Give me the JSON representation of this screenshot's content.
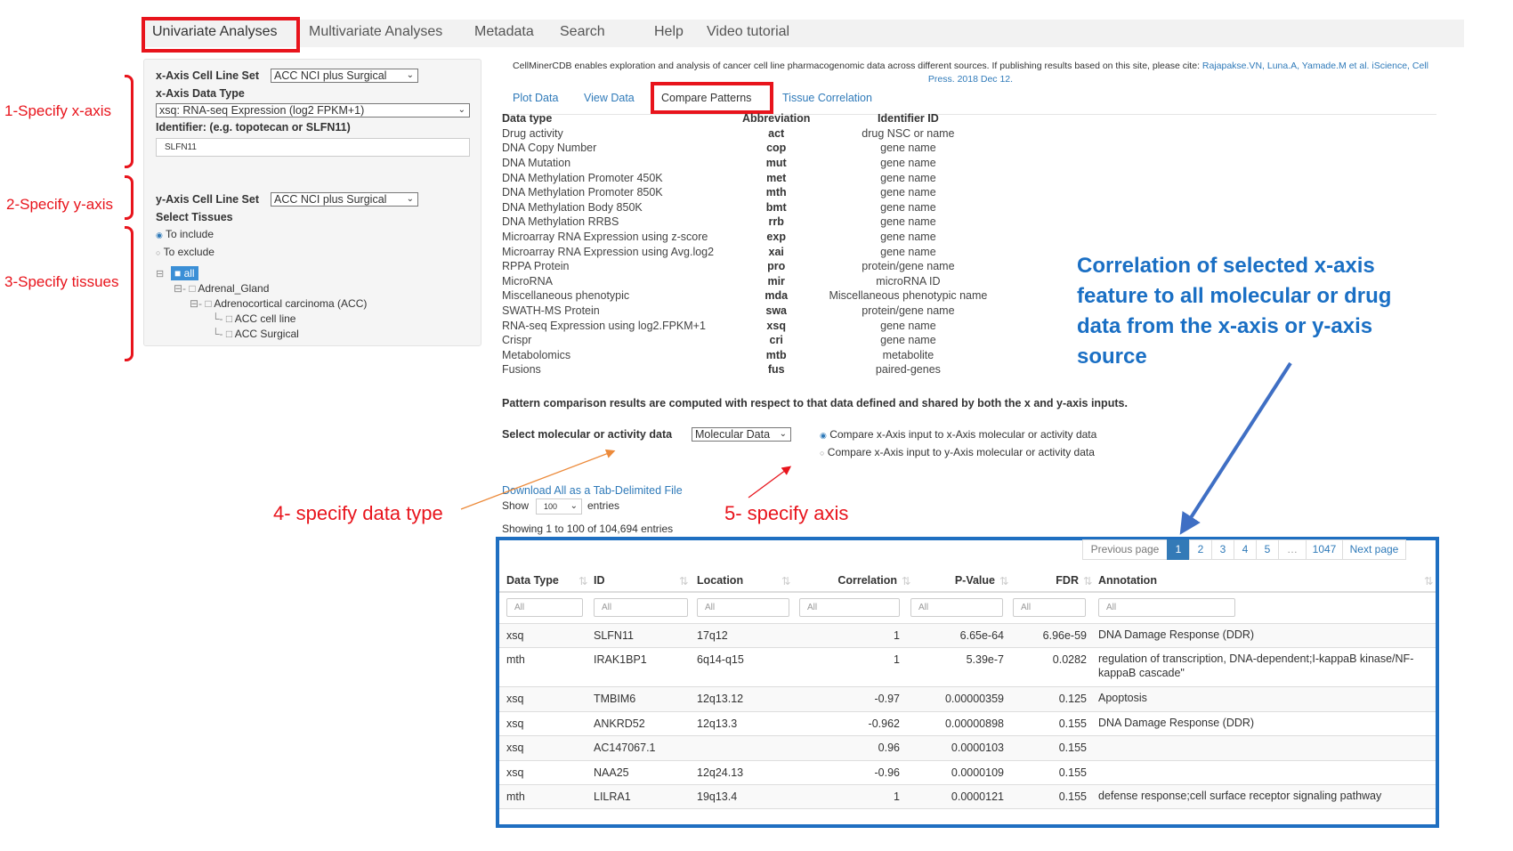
{
  "nav": {
    "items": [
      "Univariate Analyses",
      "Multivariate Analyses",
      "Metadata",
      "Search",
      "Help",
      "Video tutorial"
    ],
    "active": "Univariate Analyses"
  },
  "left": {
    "x_cellset_label": "x-Axis Cell Line Set",
    "x_cellset_value": "ACC NCI plus Surgical",
    "x_datatype_label": "x-Axis Data Type",
    "x_datatype_value": "xsq: RNA-seq Expression (log2 FPKM+1)",
    "identifier_label": "Identifier: (e.g. topotecan or SLFN11)",
    "identifier_value": "SLFN11",
    "y_cellset_label": "y-Axis Cell Line Set",
    "y_cellset_value": "ACC NCI plus Surgical",
    "select_tissues_label": "Select Tissues",
    "include_label": "To include",
    "exclude_label": "To exclude",
    "tree": {
      "all": "all",
      "adrenal": "Adrenal_Gland",
      "acc": "Adrenocortical carcinoma (ACC)",
      "cellline": "ACC cell line",
      "surgical": "ACC Surgical"
    }
  },
  "annotations": {
    "x": "1-Specify x-axis",
    "y": "2-Specify y-axis",
    "tissues": "3-Specify tissues",
    "datatype": "4- specify data type",
    "axis": "5- specify axis",
    "correlation": [
      "Correlation of selected x-axis",
      "feature to all molecular or drug",
      "data from the x-axis or y-axis",
      "source"
    ]
  },
  "citation": {
    "text": "CellMinerCDB enables exploration and analysis of cancer cell line pharmacogenomic data across different sources. If publishing results based on this site, please cite: ",
    "link": "Rajapakse.VN, Luna.A, Yamade.M et al. iScience, Cell Press. 2018 Dec 12."
  },
  "tabs": [
    "Plot Data",
    "View Data",
    "Compare Patterns",
    "Tissue Correlation"
  ],
  "datatypes": {
    "headers": [
      "Data type",
      "Abbreviation",
      "Identifier ID"
    ],
    "rows": [
      [
        "Drug activity",
        "act",
        "drug NSC or name"
      ],
      [
        "DNA Copy Number",
        "cop",
        "gene name"
      ],
      [
        "DNA Mutation",
        "mut",
        "gene name"
      ],
      [
        "DNA Methylation Promoter 450K",
        "met",
        "gene name"
      ],
      [
        "DNA Methylation Promoter 850K",
        "mth",
        "gene name"
      ],
      [
        "DNA Methylation Body 850K",
        "bmt",
        "gene name"
      ],
      [
        "DNA Methylation RRBS",
        "rrb",
        "gene name"
      ],
      [
        "Microarray RNA Expression using z-score",
        "exp",
        "gene name"
      ],
      [
        "Microarray RNA Expression using Avg.log2",
        "xai",
        "gene name"
      ],
      [
        "RPPA Protein",
        "pro",
        "protein/gene name"
      ],
      [
        "MicroRNA",
        "mir",
        "microRNA ID"
      ],
      [
        "Miscellaneous phenotypic",
        "mda",
        "Miscellaneous phenotypic name"
      ],
      [
        "SWATH-MS Protein",
        "swa",
        "protein/gene name"
      ],
      [
        "RNA-seq Expression using log2.FPKM+1",
        "xsq",
        "gene name"
      ],
      [
        "Crispr",
        "cri",
        "gene name"
      ],
      [
        "Metabolomics",
        "mtb",
        "metabolite"
      ],
      [
        "Fusions",
        "fus",
        "paired-genes"
      ]
    ]
  },
  "pattern_note": "Pattern comparison results are computed with respect to that data defined and shared by both the x and y-axis inputs.",
  "select_data": {
    "label": "Select molecular or activity data",
    "value": "Molecular Data",
    "radio1": "Compare x-Axis input to x-Axis molecular or activity data",
    "radio2": "Compare x-Axis input to y-Axis molecular or activity data"
  },
  "download": "Download All as a Tab-Delimited File",
  "show": {
    "label": "Show",
    "value": "100",
    "suffix": "entries"
  },
  "showing": "Showing 1 to 100 of 104,694 entries",
  "pagination": [
    "Previous page",
    "1",
    "2",
    "3",
    "4",
    "5",
    "…",
    "1047",
    "Next page"
  ],
  "results": {
    "headers": [
      "Data Type",
      "ID",
      "Location",
      "Correlation",
      "P-Value",
      "FDR",
      "Annotation"
    ],
    "filter_placeholder": "All",
    "rows": [
      [
        "xsq",
        "SLFN11",
        "17q12",
        "1",
        "6.65e-64",
        "6.96e-59",
        "DNA Damage Response (DDR)"
      ],
      [
        "mth",
        "IRAK1BP1",
        "6q14-q15",
        "1",
        "5.39e-7",
        "0.0282",
        "regulation of transcription, DNA-dependent;I-kappaB kinase/NF-kappaB cascade\""
      ],
      [
        "xsq",
        "TMBIM6",
        "12q13.12",
        "-0.97",
        "0.00000359",
        "0.125",
        "Apoptosis"
      ],
      [
        "xsq",
        "ANKRD52",
        "12q13.3",
        "-0.962",
        "0.00000898",
        "0.155",
        "DNA Damage Response (DDR)"
      ],
      [
        "xsq",
        "AC147067.1",
        "",
        "0.96",
        "0.0000103",
        "0.155",
        ""
      ],
      [
        "xsq",
        "NAA25",
        "12q24.13",
        "-0.96",
        "0.0000109",
        "0.155",
        ""
      ],
      [
        "mth",
        "LILRA1",
        "19q13.4",
        "1",
        "0.0000121",
        "0.155",
        "defense response;cell surface receptor signaling pathway"
      ]
    ]
  },
  "colors": {
    "highlight_red": "#e8141c",
    "box_blue": "#1f6fc1",
    "link_blue": "#2f7ab9",
    "callout_blue": "#1a6fc4",
    "arrow_orange": "#ec8a3a"
  }
}
